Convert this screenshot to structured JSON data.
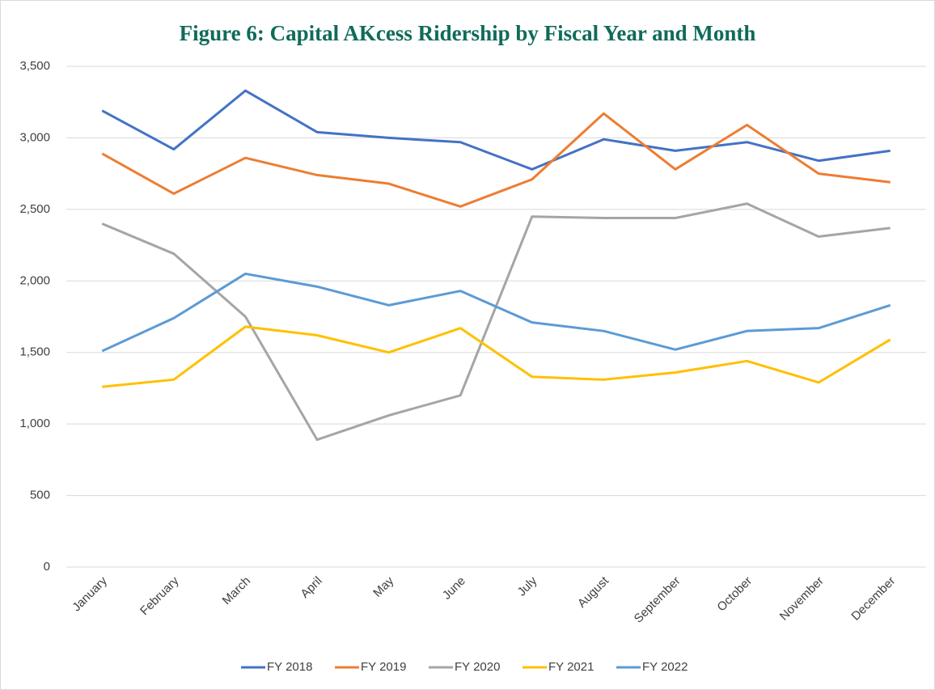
{
  "chart_data": {
    "type": "line",
    "title": "Figure 6: Capital AKcess Ridership by Fiscal Year and Month",
    "categories": [
      "January",
      "February",
      "March",
      "April",
      "May",
      "June",
      "July",
      "August",
      "September",
      "October",
      "November",
      "December"
    ],
    "series": [
      {
        "name": "FY 2018",
        "color": "#4472c4",
        "values": [
          3190,
          2920,
          3330,
          3040,
          3000,
          2970,
          2780,
          2990,
          2910,
          2970,
          2840,
          2910
        ]
      },
      {
        "name": "FY 2019",
        "color": "#ed7d31",
        "values": [
          2890,
          2610,
          2860,
          2740,
          2680,
          2520,
          2710,
          3170,
          2780,
          3090,
          2750,
          2690
        ]
      },
      {
        "name": "FY 2020",
        "color": "#a5a5a5",
        "values": [
          2400,
          2190,
          1750,
          890,
          1060,
          1200,
          2450,
          2440,
          2440,
          2540,
          2310,
          2370
        ]
      },
      {
        "name": "FY 2021",
        "color": "#ffc000",
        "values": [
          1260,
          1310,
          1680,
          1620,
          1500,
          1670,
          1330,
          1310,
          1360,
          1440,
          1290,
          1590
        ]
      },
      {
        "name": "FY 2022",
        "color": "#5b9bd5",
        "values": [
          1510,
          1740,
          2050,
          1960,
          1830,
          1930,
          1710,
          1650,
          1520,
          1650,
          1670,
          1830
        ]
      }
    ],
    "ylim": [
      0,
      3500
    ],
    "yticks": [
      0,
      {
        "value": 500,
        "label": "500"
      },
      {
        "value": 1000,
        "label": "1,000"
      },
      {
        "value": 1500,
        "label": "1,500"
      },
      {
        "value": 2000,
        "label": "2,000"
      },
      {
        "value": 2500,
        "label": "2,500"
      },
      {
        "value": 3000,
        "label": "3,000"
      },
      {
        "value": 3500,
        "label": "3,500"
      }
    ],
    "grid": true,
    "legend": "bottom"
  }
}
